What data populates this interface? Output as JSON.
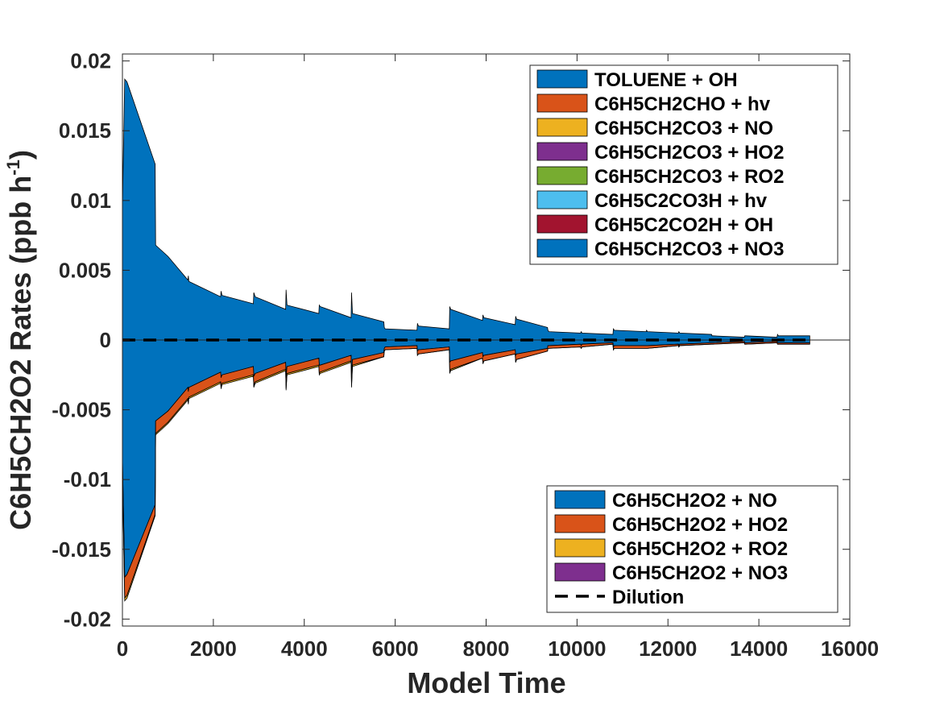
{
  "chart_data": {
    "type": "area",
    "xlabel": "Model Time",
    "ylabel": "C6H5CH2O2 Rates (ppb h",
    "ylabel_sup": "-1",
    "ylabel_close": ")",
    "xlim": [
      0,
      16000
    ],
    "ylim": [
      -0.0205,
      0.0205
    ],
    "x_ticks": [
      0,
      2000,
      4000,
      6000,
      8000,
      10000,
      12000,
      14000,
      16000
    ],
    "x_tick_labels": [
      "0",
      "2000",
      "4000",
      "6000",
      "8000",
      "10000",
      "12000",
      "14000",
      "16000"
    ],
    "y_ticks": [
      -0.02,
      -0.015,
      -0.01,
      -0.005,
      0,
      0.005,
      0.01,
      0.015,
      0.02
    ],
    "y_tick_labels": [
      "-0.02",
      "-0.015",
      "-0.01",
      "-0.005",
      "0",
      "0.005",
      "0.01",
      "0.015",
      "0.02"
    ],
    "grid": false,
    "production_legend": {
      "placement": "top-right",
      "entries": [
        {
          "name": "TOLUENE + OH",
          "color": "#0072BD"
        },
        {
          "name": "C6H5CH2CHO + hv",
          "color": "#D95319"
        },
        {
          "name": "C6H5CH2CO3 + NO",
          "color": "#EDB120"
        },
        {
          "name": "C6H5CH2CO3 + HO2",
          "color": "#7E2F8E"
        },
        {
          "name": "C6H5CH2CO3 + RO2",
          "color": "#77AC30"
        },
        {
          "name": "C6H5C2CO3H + hv",
          "color": "#4DBEEE"
        },
        {
          "name": "C6H5C2CO2H + OH",
          "color": "#A2142F"
        },
        {
          "name": "C6H5CH2CO3 + NO3",
          "color": "#0072BD"
        }
      ]
    },
    "loss_legend": {
      "placement": "bottom-right",
      "entries": [
        {
          "name": "C6H5CH2O2 + NO",
          "color": "#0072BD"
        },
        {
          "name": "C6H5CH2O2 + HO2",
          "color": "#D95319"
        },
        {
          "name": "C6H5CH2O2 + RO2",
          "color": "#EDB120"
        },
        {
          "name": "C6H5CH2O2 + NO3",
          "color": "#7E2F8E"
        },
        {
          "name": "Dilution",
          "color": "#000000",
          "style": "dashed"
        }
      ]
    },
    "x": [
      0,
      50,
      100,
      720,
      730,
      1000,
      1440,
      1450,
      1460,
      2160,
      2170,
      2190,
      2880,
      2890,
      2920,
      3590,
      3600,
      3620,
      4320,
      4330,
      4350,
      5030,
      5040,
      5060,
      5750,
      5760,
      5780,
      6480,
      6490,
      6510,
      7190,
      7200,
      7220,
      7920,
      7930,
      7950,
      8640,
      8650,
      8670,
      9350,
      9360,
      9380,
      10080,
      10090,
      10110,
      10790,
      10800,
      10820,
      11520,
      11530,
      11550,
      12230,
      12240,
      12260,
      12960,
      12970,
      12990,
      13680,
      13690,
      13710,
      14400,
      14410,
      14430,
      15120
    ],
    "series_production": [
      {
        "name": "TOLUENE + OH",
        "values": [
          0.0095,
          0.0187,
          0.0185,
          0.0126,
          0.0068,
          0.006,
          0.0043,
          0.0046,
          0.0042,
          0.0031,
          0.0035,
          0.0032,
          0.0026,
          0.0034,
          0.0031,
          0.0022,
          0.0036,
          0.0025,
          0.0019,
          0.0025,
          0.0024,
          0.0016,
          0.0034,
          0.0019,
          0.0013,
          0.0009,
          0.0008,
          0.0007,
          0.0012,
          0.001,
          0.0008,
          0.0024,
          0.0022,
          0.0014,
          0.0018,
          0.0016,
          0.0011,
          0.0017,
          0.0015,
          0.0009,
          0.0007,
          0.0006,
          0.0005,
          0.0006,
          0.0005,
          0.0004,
          0.0008,
          0.0007,
          0.0006,
          0.0007,
          0.0006,
          0.0005,
          0.0006,
          0.0005,
          0.0004,
          0.0003,
          0.0003,
          0.0002,
          0.0003,
          0.0003,
          0.0002,
          0.0004,
          0.0003,
          0.0003
        ]
      }
    ],
    "series_loss": [
      {
        "name": "C6H5CH2O2 + NO",
        "values": [
          -0.0085,
          -0.017,
          -0.0168,
          -0.0118,
          -0.0058,
          -0.0051,
          -0.0034,
          -0.0037,
          -0.0034,
          -0.0023,
          -0.0027,
          -0.0025,
          -0.0019,
          -0.0026,
          -0.0024,
          -0.0016,
          -0.0027,
          -0.0019,
          -0.0013,
          -0.0018,
          -0.0018,
          -0.0011,
          -0.0025,
          -0.0014,
          -0.0009,
          -0.0006,
          -0.0005,
          -0.0004,
          -0.0008,
          -0.0007,
          -0.0005,
          -0.0016,
          -0.0015,
          -0.0009,
          -0.0012,
          -0.0011,
          -0.0007,
          -0.0011,
          -0.001,
          -0.0006,
          -0.0004,
          -0.0004,
          -0.0003,
          -0.0004,
          -0.0003,
          -0.0002,
          -0.0005,
          -0.0004,
          -0.0004,
          -0.0004,
          -0.0004,
          -0.0003,
          -0.0004,
          -0.0003,
          -0.0002,
          -0.0002,
          -0.0002,
          -0.0001,
          -0.0002,
          -0.0002,
          -0.0001,
          -0.0002,
          -0.0002,
          -0.0002
        ]
      },
      {
        "name": "C6H5CH2O2 + HO2",
        "values": [
          -0.0008,
          -0.0015,
          -0.0015,
          -0.0007,
          -0.0009,
          -0.0008,
          -0.0008,
          -0.0008,
          -0.0007,
          -0.0007,
          -0.0007,
          -0.0006,
          -0.0006,
          -0.0007,
          -0.0006,
          -0.0005,
          -0.0008,
          -0.0005,
          -0.0005,
          -0.0006,
          -0.0005,
          -0.0004,
          -0.0008,
          -0.0004,
          -0.0003,
          -0.0002,
          -0.0002,
          -0.0002,
          -0.0003,
          -0.0003,
          -0.0002,
          -0.0007,
          -0.0006,
          -0.0004,
          -0.0005,
          -0.0004,
          -0.0003,
          -0.0005,
          -0.0004,
          -0.0002,
          -0.0002,
          -0.0002,
          -0.0002,
          -0.0002,
          -0.0002,
          -0.0001,
          -0.0002,
          -0.0002,
          -0.0002,
          -0.0002,
          -0.0002,
          -0.0001,
          -0.0001,
          -0.0001,
          -0.0001,
          -0.0001,
          -0.0001,
          -0.0001,
          -0.0001,
          -0.0001,
          -0.0001,
          -0.0001,
          -0.0001,
          -0.0001
        ]
      },
      {
        "name": "C6H5CH2O2 + RO2",
        "values": [
          -0.0002,
          -0.0002,
          -0.0002,
          -0.0001,
          -0.0001,
          -0.0001,
          -0.0001,
          -0.0001,
          -0.0001,
          -0.0001,
          -0.0001,
          -0.0001,
          -0.0001,
          -0.0001,
          -0.0001,
          -0.0001,
          -0.0001,
          -0.0001,
          -0.0001,
          -0.0001,
          -0.0001,
          -0.0001,
          -0.0001,
          -0.0001,
          0,
          0,
          0,
          0,
          0,
          0,
          0,
          -0.0001,
          -0.0001,
          0,
          0,
          0,
          0,
          0,
          0,
          0,
          0,
          0,
          0,
          0,
          0,
          0,
          0,
          0,
          0,
          0,
          0,
          0,
          0,
          0,
          0,
          0,
          0,
          0,
          0,
          0,
          0,
          0,
          0,
          0
        ]
      }
    ],
    "dilution": {
      "name": "Dilution",
      "value": 0
    }
  }
}
